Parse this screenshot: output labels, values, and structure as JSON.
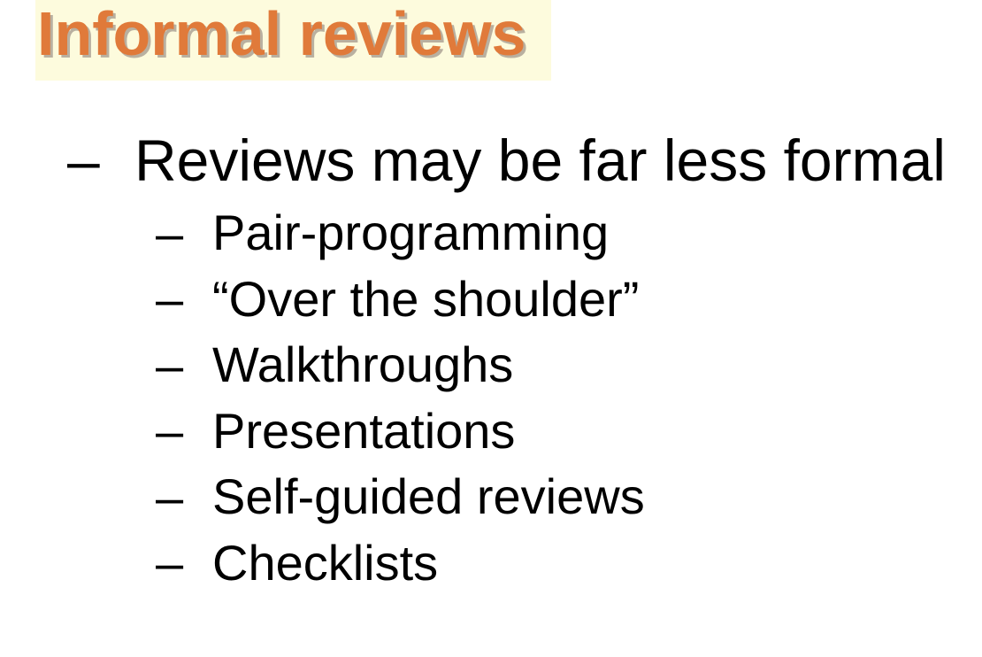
{
  "slide": {
    "title": "Informal reviews",
    "bullet_marker": "–",
    "main_point": "Reviews may be far less formal",
    "sub_points": [
      "Pair-programming",
      "“Over the shoulder”",
      "Walkthroughs",
      "Presentations",
      "Self-guided reviews",
      "Checklists"
    ]
  },
  "colors": {
    "title_text": "#e07a3a",
    "title_highlight": "#fdfbdd",
    "title_shadow": "#b9b0a0",
    "body_text": "#000000",
    "background": "#ffffff"
  }
}
